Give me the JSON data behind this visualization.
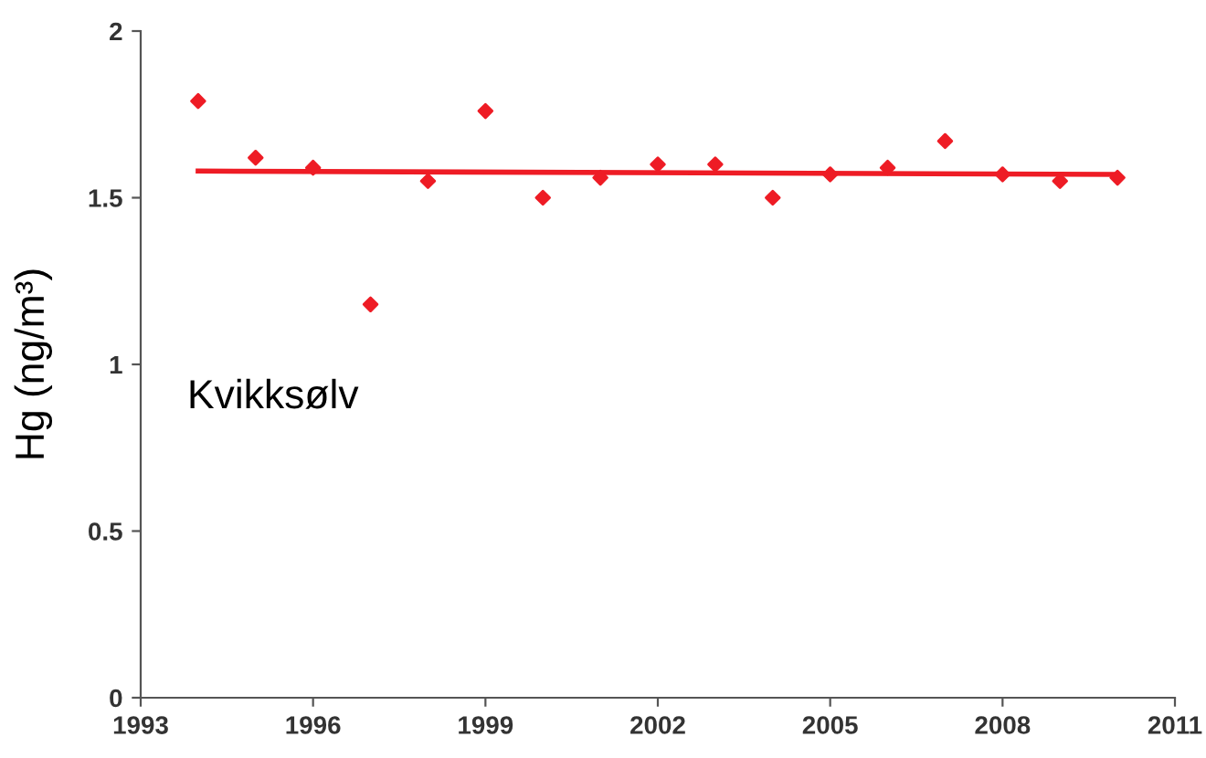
{
  "chart_data": {
    "type": "scatter",
    "ylabel": "Hg (ng/m³)",
    "annotations": [
      "Kvikksølv"
    ],
    "x": [
      1994,
      1995,
      1996,
      1997,
      1998,
      1999,
      2000,
      2001,
      2002,
      2003,
      2004,
      2005,
      2006,
      2007,
      2008,
      2009,
      2010
    ],
    "series": [
      {
        "color": "#ee1c25",
        "marker": "diamond",
        "values": [
          1.79,
          1.62,
          1.59,
          1.18,
          1.55,
          1.76,
          1.5,
          1.56,
          1.6,
          1.6,
          1.5,
          1.57,
          1.59,
          1.67,
          1.57,
          1.55,
          1.56
        ]
      },
      {
        "type": "line",
        "color": "#ee1c25",
        "marker": "none",
        "x": [
          1994,
          2010
        ],
        "values": [
          1.58,
          1.57
        ]
      }
    ],
    "xlim": [
      1993,
      2011
    ],
    "xticks": [
      1993,
      1996,
      1999,
      2002,
      2005,
      2008,
      2011
    ],
    "ylim": [
      0,
      2
    ],
    "yticks": [
      0,
      0.5,
      1,
      1.5,
      2
    ],
    "grid": false,
    "legend": false
  }
}
